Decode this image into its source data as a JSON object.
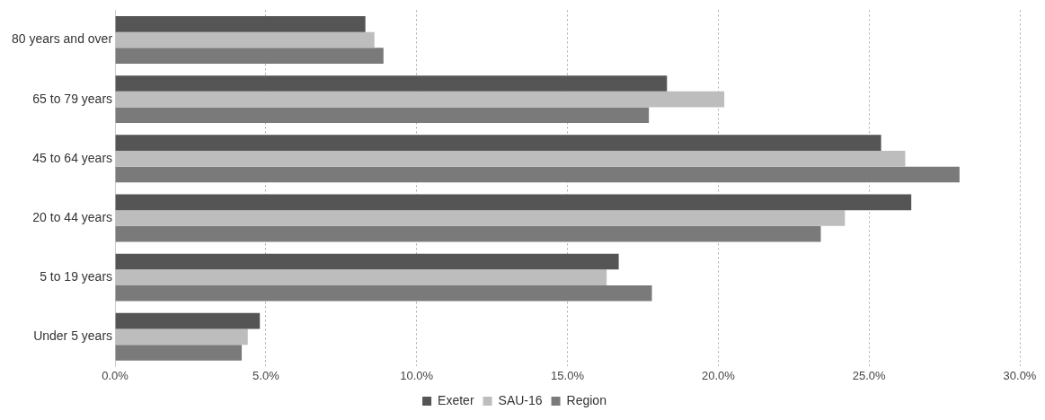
{
  "chart_data": {
    "type": "bar",
    "orientation": "horizontal",
    "categories": [
      "80 years and over",
      "65 to 79 years",
      "45 to 64 years",
      "20 to 44 years",
      "5 to 19 years",
      "Under 5 years"
    ],
    "series": [
      {
        "name": "Exeter",
        "color": "#555555",
        "values": [
          8.3,
          18.3,
          25.4,
          26.4,
          16.7,
          4.8
        ]
      },
      {
        "name": "SAU-16",
        "color": "#bdbdbd",
        "values": [
          8.6,
          20.2,
          26.2,
          24.2,
          16.3,
          4.4
        ]
      },
      {
        "name": "Region",
        "color": "#7a7a7a",
        "values": [
          8.9,
          17.7,
          28.0,
          23.4,
          17.8,
          4.2
        ]
      }
    ],
    "xlim": [
      0,
      30
    ],
    "xticks": [
      {
        "value": 0,
        "label": "0.0%"
      },
      {
        "value": 5,
        "label": "5.0%"
      },
      {
        "value": 10,
        "label": "10.0%"
      },
      {
        "value": 15,
        "label": "15.0%"
      },
      {
        "value": 20,
        "label": "20.0%"
      },
      {
        "value": 25,
        "label": "25.0%"
      },
      {
        "value": 30,
        "label": "30.0%"
      }
    ],
    "grid": "x",
    "legend": "bottom"
  }
}
